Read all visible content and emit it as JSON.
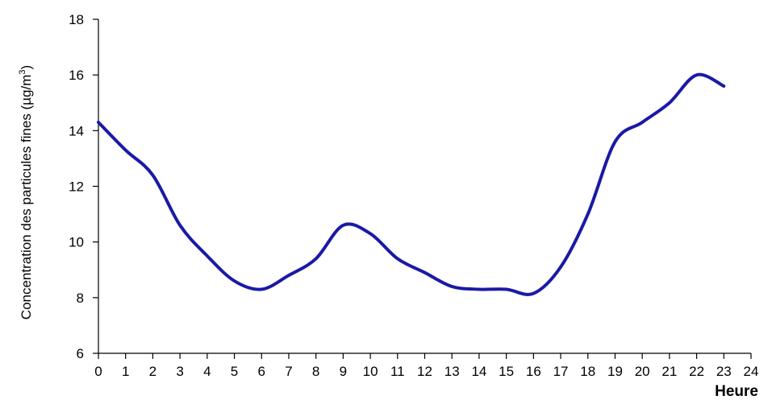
{
  "chart_data": {
    "type": "line",
    "xlabel": "Heure",
    "ylabel_main": "Concentration des particules fines (µg/m",
    "ylabel_sup": "3",
    "ylabel_close": ")",
    "xlim": [
      0,
      24
    ],
    "ylim": [
      6,
      18
    ],
    "x_ticks": [
      "0",
      "1",
      "2",
      "3",
      "4",
      "5",
      "6",
      "7",
      "8",
      "9",
      "10",
      "11",
      "12",
      "13",
      "14",
      "15",
      "16",
      "17",
      "18",
      "19",
      "20",
      "21",
      "22",
      "23",
      "24"
    ],
    "y_ticks": [
      "6",
      "8",
      "10",
      "12",
      "14",
      "16",
      "18"
    ],
    "grid": false,
    "legend": "none",
    "line_color": "#1a1aa6",
    "series": [
      {
        "x": [
          0,
          1,
          2,
          3,
          4,
          5,
          6,
          7,
          8,
          9,
          10,
          11,
          12,
          13,
          14,
          15,
          16,
          17,
          18,
          19,
          20,
          21,
          22,
          23
        ],
        "values": [
          14.3,
          13.3,
          12.4,
          10.6,
          9.5,
          8.6,
          8.3,
          8.8,
          9.4,
          10.6,
          10.3,
          9.4,
          8.9,
          8.4,
          8.3,
          8.3,
          8.15,
          9.1,
          11.0,
          13.6,
          14.3,
          15.0,
          16.0,
          15.6
        ]
      }
    ]
  }
}
